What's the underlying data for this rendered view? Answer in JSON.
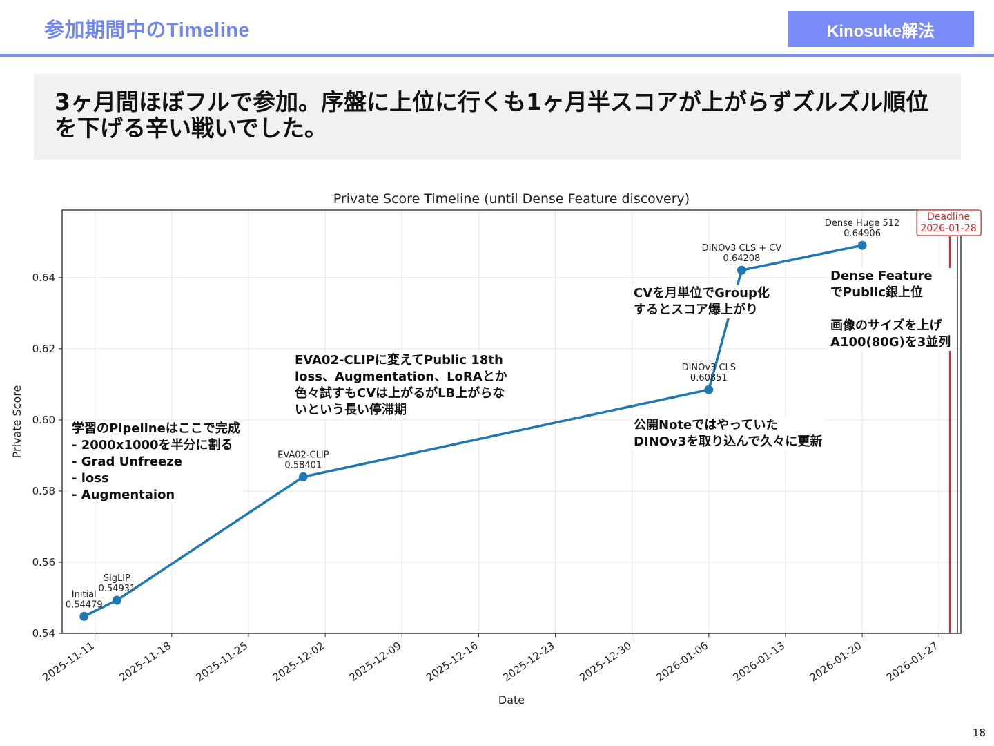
{
  "slide": {
    "header_title": "参加期間中のTimeline",
    "badge": "Kinosuke解法",
    "headline": "3ヶ月間ほぼフルで参加。序盤に上位に行くも1ヶ月半スコアが上がらずズルズル順位を下げる辛い戦いでした。",
    "page_number": "18",
    "accent_color": "#7a8cf7"
  },
  "annotations": [
    {
      "id": "pipeline",
      "text": "学習のPipelineはここで完成\n- 2000x1000を半分に割る\n- Grad Unfreeze\n- loss\n- Augmentaion"
    },
    {
      "id": "stagnation",
      "text": "EVA02-CLIPに変えてPublic 18th\nloss、Augmentation、LoRAとか\n色々試すもCVは上がるがLB上がらな\nいという長い停滞期"
    },
    {
      "id": "public-note",
      "text": "公開Noteではやっていた\nDINOv3を取り込んで久々に更新"
    },
    {
      "id": "cv-group",
      "text": "CVを月単位でGroup化\nするとスコア爆上がり"
    },
    {
      "id": "dense-feature",
      "text": "Dense Feature\nでPublic銀上位\n\n画像のサイズを上げ\nA100(80G)を3並列"
    }
  ],
  "chart_data": {
    "type": "line",
    "title": "Private Score Timeline (until Dense Feature discovery)",
    "xlabel": "Date",
    "ylabel": "Private Score",
    "x_range": [
      "2025-11-08",
      "2026-01-29"
    ],
    "ylim": [
      0.54,
      0.659
    ],
    "yticks": [
      "0.54",
      "0.56",
      "0.58",
      "0.60",
      "0.62",
      "0.64"
    ],
    "xticks": [
      "2025-11-11",
      "2025-11-18",
      "2025-11-25",
      "2025-12-02",
      "2025-12-09",
      "2025-12-16",
      "2025-12-23",
      "2025-12-30",
      "2026-01-06",
      "2026-01-13",
      "2026-01-20",
      "2026-01-27"
    ],
    "grid": true,
    "line_color": "#1f77b4",
    "points": [
      {
        "date": "2025-11-10",
        "value": 0.54479,
        "name": "Initial",
        "value_label": "0.54479"
      },
      {
        "date": "2025-11-13",
        "value": 0.54931,
        "name": "SigLIP",
        "value_label": "0.54931"
      },
      {
        "date": "2025-11-30",
        "value": 0.58401,
        "name": "EVA02-CLIP",
        "value_label": "0.58401"
      },
      {
        "date": "2026-01-06",
        "value": 0.60851,
        "name": "DINOv3 CLS",
        "value_label": "0.60851"
      },
      {
        "date": "2026-01-09",
        "value": 0.64208,
        "name": "DINOv3 CLS + CV",
        "value_label": "0.64208"
      },
      {
        "date": "2026-01-20",
        "value": 0.64906,
        "name": "Dense Huge 512",
        "value_label": "0.64906"
      }
    ],
    "deadline": {
      "date": "2026-01-28",
      "label": "Deadline",
      "date_label": "2026-01-28",
      "color": "#d62728"
    }
  }
}
